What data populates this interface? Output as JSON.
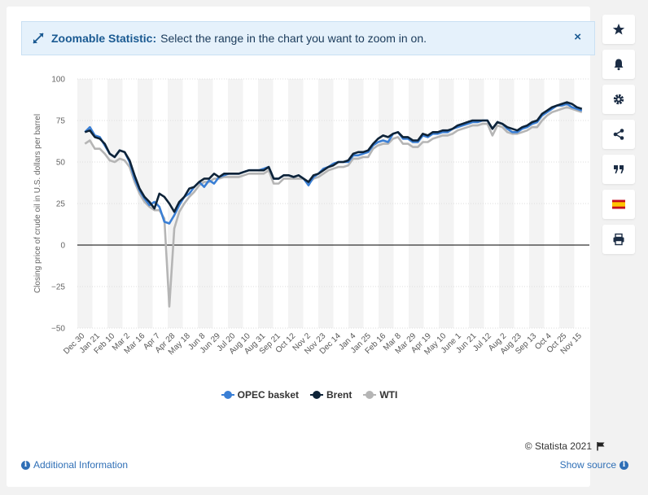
{
  "banner": {
    "title": "Zoomable Statistic:",
    "message": "Select the range in the chart you want to zoom in on.",
    "close": "×"
  },
  "sidebar": [
    "star-icon",
    "bell-icon",
    "gear-icon",
    "share-icon",
    "quote-icon",
    "spain-flag-icon",
    "print-icon"
  ],
  "footer": {
    "copyright": "© Statista 2021",
    "additional_info": "Additional Information",
    "show_source": "Show source"
  },
  "colors": {
    "opec": "#3a7fd5",
    "brent": "#0e2338",
    "wti": "#b5b5b5",
    "accent": "#2f6fb6"
  },
  "chart_data": {
    "type": "line",
    "title": "",
    "ylabel": "Closing price of crude oil in U.S. dollars per barrel",
    "xlabel": "",
    "ylim": [
      -50,
      100
    ],
    "yticks": [
      100,
      75,
      50,
      25,
      0,
      -25,
      -50
    ],
    "xtick_labels": [
      "Dec 30",
      "Jan 21",
      "Feb 10",
      "Mar 2",
      "Mar 16",
      "Apr 7",
      "Apr 28",
      "May 18",
      "Jun 8",
      "Jun 29",
      "Jul 20",
      "Aug 10",
      "Aug 31",
      "Sep 21",
      "Oct 12",
      "Nov 2",
      "Nov 23",
      "Dec 14",
      "Jan 4",
      "Jan 25",
      "Feb 16",
      "Mar 8",
      "Mar 29",
      "Apr 19",
      "May 10",
      "June 1",
      "Jun 21",
      "Jul 12",
      "Aug 2",
      "Aug 23",
      "Sep 13",
      "Oct 4",
      "Oct 25",
      "Nov 15"
    ],
    "legend": [
      "OPEC basket",
      "Brent",
      "WTI"
    ],
    "series": [
      {
        "name": "OPEC basket",
        "values": [
          68,
          71,
          66,
          65,
          60,
          55,
          53,
          57,
          56,
          50,
          40,
          33,
          28,
          24,
          26,
          23,
          14,
          13,
          18,
          24,
          29,
          31,
          35,
          38,
          35,
          39,
          37,
          41,
          42,
          43,
          43,
          43,
          44,
          45,
          45,
          45,
          46,
          47,
          40,
          40,
          42,
          42,
          41,
          42,
          40,
          36,
          41,
          43,
          46,
          47,
          49,
          50,
          50,
          50,
          54,
          54,
          55,
          56,
          60,
          62,
          63,
          62,
          67,
          68,
          64,
          64,
          62,
          62,
          66,
          65,
          67,
          67,
          68,
          68,
          70,
          71,
          72,
          73,
          74,
          74,
          75,
          75,
          70,
          74,
          73,
          70,
          68,
          68,
          70,
          71,
          73,
          74,
          78,
          80,
          82,
          84,
          84,
          85,
          83,
          82,
          81
        ]
      },
      {
        "name": "Brent",
        "values": [
          68,
          69,
          65,
          64,
          61,
          55,
          53,
          57,
          56,
          51,
          42,
          34,
          29,
          26,
          22,
          31,
          29,
          25,
          20,
          26,
          29,
          34,
          35,
          38,
          40,
          40,
          43,
          41,
          43,
          43,
          43,
          43,
          44,
          45,
          45,
          45,
          45,
          47,
          40,
          40,
          42,
          42,
          41,
          42,
          40,
          38,
          42,
          43,
          45,
          47,
          48,
          50,
          50,
          51,
          55,
          56,
          56,
          57,
          61,
          64,
          66,
          65,
          67,
          68,
          65,
          65,
          63,
          63,
          67,
          66,
          68,
          68,
          69,
          69,
          70,
          72,
          73,
          74,
          75,
          75,
          75,
          75,
          70,
          74,
          73,
          71,
          70,
          69,
          71,
          72,
          74,
          75,
          79,
          81,
          83,
          84,
          85,
          86,
          85,
          83,
          82
        ]
      },
      {
        "name": "WTI",
        "values": [
          61,
          63,
          58,
          58,
          55,
          51,
          50,
          52,
          51,
          47,
          38,
          31,
          26,
          23,
          21,
          21,
          16,
          -37,
          10,
          20,
          25,
          29,
          32,
          36,
          38,
          38,
          40,
          40,
          41,
          41,
          41,
          41,
          42,
          43,
          43,
          43,
          43,
          45,
          37,
          37,
          40,
          40,
          40,
          40,
          40,
          37,
          40,
          41,
          43,
          45,
          46,
          47,
          47,
          48,
          52,
          52,
          53,
          53,
          58,
          60,
          61,
          61,
          64,
          65,
          61,
          61,
          59,
          59,
          62,
          62,
          64,
          65,
          66,
          66,
          67,
          69,
          70,
          71,
          72,
          72,
          73,
          73,
          66,
          72,
          71,
          68,
          67,
          67,
          68,
          69,
          71,
          71,
          75,
          78,
          80,
          81,
          82,
          83,
          82,
          81,
          80
        ]
      }
    ]
  }
}
